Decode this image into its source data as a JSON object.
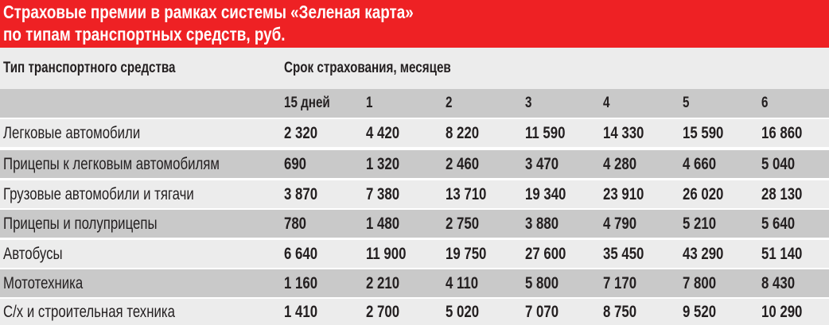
{
  "title": {
    "line1": "Страховые премии в рамках системы «Зеленая карта»",
    "line2": "по типам транспортных средств, руб."
  },
  "header": {
    "vehicle_type": "Тип транспортного средства",
    "term": "Срок страхования, месяцев",
    "periods": [
      "15 дней",
      "1",
      "2",
      "3",
      "4",
      "5",
      "6"
    ]
  },
  "colors": {
    "title_bg": "#ee2124",
    "row_light": "#ececec",
    "row_gray": "#c9c9c9"
  },
  "rows": [
    {
      "label": "Легковые автомобили",
      "values": [
        "2 320",
        "4 420",
        "8 220",
        "11 590",
        "14 330",
        "15 590",
        "16 860"
      ]
    },
    {
      "label": "Прицепы к легковым автомобилям",
      "values": [
        "690",
        "1 320",
        "2 460",
        "3 470",
        "4 280",
        "4 660",
        "5 040"
      ]
    },
    {
      "label": "Грузовые автомобили и тягачи",
      "values": [
        "3 870",
        "7 380",
        "13 710",
        "19 340",
        "23 910",
        "26 020",
        "28 130"
      ]
    },
    {
      "label": "Прицепы и полуприцепы",
      "values": [
        "780",
        "1 480",
        "2 750",
        "3 880",
        "4 790",
        "5 210",
        "5 640"
      ]
    },
    {
      "label": "Автобусы",
      "values": [
        "6 640",
        "11 900",
        "19 750",
        "27 600",
        "35 450",
        "43 290",
        "51 140"
      ]
    },
    {
      "label": "Мототехника",
      "values": [
        "1 160",
        "2 210",
        "4 110",
        "5 800",
        "7 170",
        "7 800",
        "8 430"
      ]
    },
    {
      "label": "С/х и строительная техника",
      "values": [
        "1 410",
        "2 700",
        "5 020",
        "7 070",
        "8 750",
        "9 520",
        "10 290"
      ]
    }
  ]
}
